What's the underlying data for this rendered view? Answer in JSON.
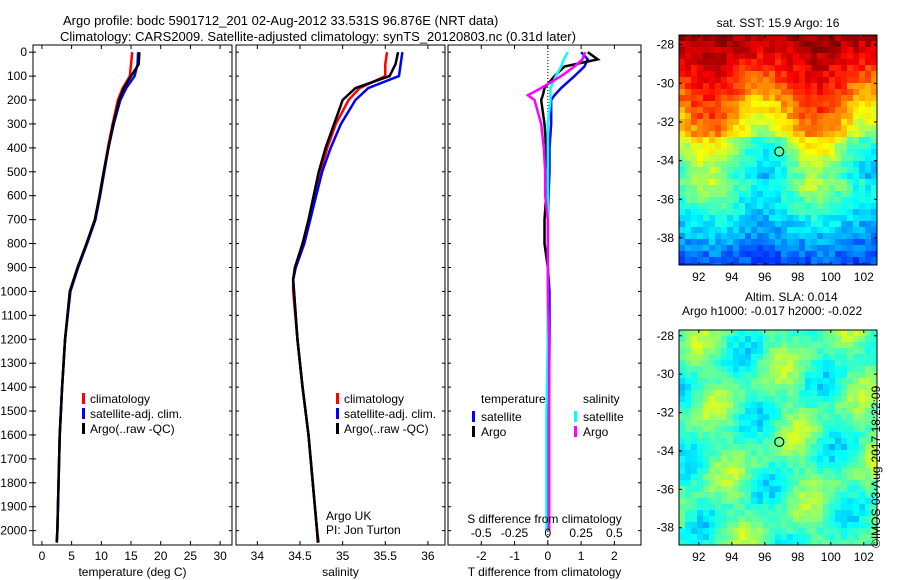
{
  "header": {
    "title_line1": "Argo profile: bodc 5901712_201 02-Aug-2012 33.531S 96.876E (NRT data)",
    "title_line2": "Climatology: CARS2009. Satellite-adjusted climatology: synTS_20120803.nc (0.31d later)"
  },
  "colors": {
    "climatology": "#ff0000",
    "satellite": "#0000ff",
    "argo": "#000000",
    "sal_satellite": "#00ffff",
    "sal_argo": "#ff00ff"
  },
  "chart_data": [
    {
      "type": "line",
      "xlabel": "temperature (deg C)",
      "xlim": [
        -1.5,
        32
      ],
      "ylim": [
        2060,
        -30
      ],
      "xticks": [
        0,
        5,
        10,
        15,
        20,
        25,
        30
      ],
      "yticks": [
        0,
        100,
        200,
        300,
        400,
        500,
        600,
        700,
        800,
        900,
        1000,
        1100,
        1200,
        1300,
        1400,
        1500,
        1600,
        1700,
        1800,
        1900,
        2000
      ],
      "depth": [
        0,
        50,
        100,
        150,
        200,
        300,
        400,
        500,
        600,
        700,
        800,
        900,
        1000,
        1200,
        1400,
        1600,
        1800,
        2000,
        2050
      ],
      "series": [
        {
          "name": "climatology",
          "values": [
            15.2,
            15.0,
            14.8,
            13.6,
            12.8,
            11.9,
            11.1,
            10.4,
            9.7,
            9.0,
            7.6,
            6.0,
            4.7,
            3.9,
            3.4,
            3.0,
            2.8,
            2.6,
            2.5
          ]
        },
        {
          "name": "satellite-adj. clim.",
          "values": [
            16.2,
            16.1,
            15.6,
            14.2,
            13.2,
            12.1,
            11.2,
            10.5,
            9.8,
            9.0,
            7.6,
            6.1,
            4.8,
            3.9,
            3.4,
            3.0,
            2.8,
            2.6,
            2.5
          ]
        },
        {
          "name": "Argo(..raw -QC)",
          "values": [
            16.4,
            16.3,
            15.0,
            13.8,
            13.0,
            12.0,
            11.2,
            10.4,
            9.7,
            8.9,
            7.5,
            6.0,
            4.7,
            3.9,
            3.4,
            3.0,
            2.8,
            2.6,
            2.5
          ]
        }
      ],
      "legend": [
        "climatology",
        "satellite-adj. clim.",
        "Argo(..raw -QC)"
      ]
    },
    {
      "type": "line",
      "xlabel": "salinity",
      "xlim": [
        33.75,
        36.2
      ],
      "ylim": [
        2060,
        -30
      ],
      "xticks": [
        34,
        34.5,
        35,
        35.5,
        36
      ],
      "depth": [
        0,
        50,
        100,
        150,
        200,
        300,
        400,
        500,
        600,
        700,
        800,
        900,
        950,
        1000,
        1200,
        1400,
        1600,
        1800,
        2000,
        2050
      ],
      "series": [
        {
          "name": "climatology",
          "values": [
            35.52,
            35.5,
            35.5,
            35.2,
            35.07,
            34.92,
            34.82,
            34.74,
            34.68,
            34.62,
            34.55,
            34.45,
            34.42,
            34.42,
            34.47,
            34.53,
            34.6,
            34.65,
            34.7,
            34.72
          ]
        },
        {
          "name": "satellite-adj. clim.",
          "values": [
            35.7,
            35.68,
            35.66,
            35.3,
            35.15,
            34.98,
            34.86,
            34.76,
            34.69,
            34.62,
            34.55,
            34.45,
            34.42,
            34.43,
            34.47,
            34.53,
            34.6,
            34.65,
            34.7,
            34.71
          ]
        },
        {
          "name": "Argo(..raw -QC)",
          "values": [
            35.65,
            35.62,
            35.55,
            35.15,
            35.0,
            34.9,
            34.8,
            34.72,
            34.66,
            34.6,
            34.53,
            34.44,
            34.42,
            34.43,
            34.47,
            34.53,
            34.6,
            34.65,
            34.7,
            34.71
          ]
        }
      ],
      "legend": [
        "climatology",
        "satellite-adj. clim.",
        "Argo(..raw -QC)"
      ],
      "annotation": [
        "Argo UK",
        "PI: Jon Turton"
      ]
    },
    {
      "type": "line",
      "xlabel": "T difference from climatology",
      "x2label": "S difference from climatology",
      "xlim": [
        -3.0,
        2.8
      ],
      "ylim": [
        2060,
        -30
      ],
      "xticks": [
        -2,
        -1,
        0,
        1,
        2
      ],
      "x2ticks": [
        "-0.5",
        "-0.25",
        "0",
        "0.25",
        "0.5"
      ],
      "depth": [
        0,
        30,
        60,
        100,
        150,
        180,
        200,
        300,
        400,
        500,
        600,
        700,
        800,
        900,
        1000,
        1200,
        1500,
        2000
      ],
      "series": [
        {
          "name": "temperature satellite",
          "values": [
            1.0,
            1.2,
            1.1,
            0.8,
            0.4,
            0.2,
            0.1,
            0.1,
            0.05,
            0.05,
            0.02,
            0.0,
            0.0,
            0.0,
            0.05,
            0.05,
            0.03,
            0.03
          ]
        },
        {
          "name": "temperature Argo",
          "values": [
            1.2,
            1.5,
            0.5,
            0.2,
            -0.1,
            -0.15,
            -0.2,
            -0.1,
            -0.05,
            -0.02,
            -0.05,
            -0.1,
            -0.1,
            0.0,
            0.0,
            0.0,
            0.0,
            0.0
          ]
        },
        {
          "name": "salinity satellite",
          "values": [
            0.15,
            0.12,
            0.1,
            0.06,
            0.02,
            0.02,
            0.02,
            0.0,
            0.0,
            0.0,
            0.0,
            0.0,
            0.0,
            0.0,
            0.0,
            0.0,
            -0.01,
            -0.01
          ]
        },
        {
          "name": "salinity Argo",
          "values": [
            0.28,
            0.26,
            0.2,
            0.1,
            -0.05,
            -0.15,
            -0.1,
            -0.05,
            -0.03,
            -0.02,
            -0.02,
            0.0,
            0.0,
            0.0,
            0.0,
            0.01,
            0.01,
            0.01
          ]
        }
      ],
      "legend": {
        "temperature_title": "temperature",
        "salinity_title": "salinity",
        "items": [
          "satellite",
          "Argo",
          "satellite",
          "Argo"
        ]
      }
    },
    {
      "type": "heatmap",
      "title": "sat. SST: 15.9 Argo: 16",
      "xlim": [
        90.8,
        102.8
      ],
      "ylim": [
        -27.5,
        -39.4
      ],
      "xticks": [
        92,
        94,
        96,
        98,
        100,
        102
      ],
      "yticks": [
        -28,
        -30,
        -32,
        -34,
        -36,
        -38
      ],
      "marker": {
        "lon": 96.876,
        "lat": -33.531
      }
    },
    {
      "type": "heatmap",
      "title_line1": "Altim. SLA: 0.014",
      "title_line2": "Argo h1000: -0.017 h2000: -0.022",
      "xlim": [
        90.8,
        102.8
      ],
      "ylim": [
        -27.7,
        -38.9
      ],
      "xticks": [
        92,
        94,
        96,
        98,
        100,
        102
      ],
      "yticks": [
        -28,
        -30,
        -32,
        -34,
        -36,
        -38
      ],
      "marker": {
        "lon": 96.876,
        "lat": -33.531
      }
    }
  ],
  "footer": {
    "credit": "©IMOS 03-Aug-2017 18:22:09"
  }
}
